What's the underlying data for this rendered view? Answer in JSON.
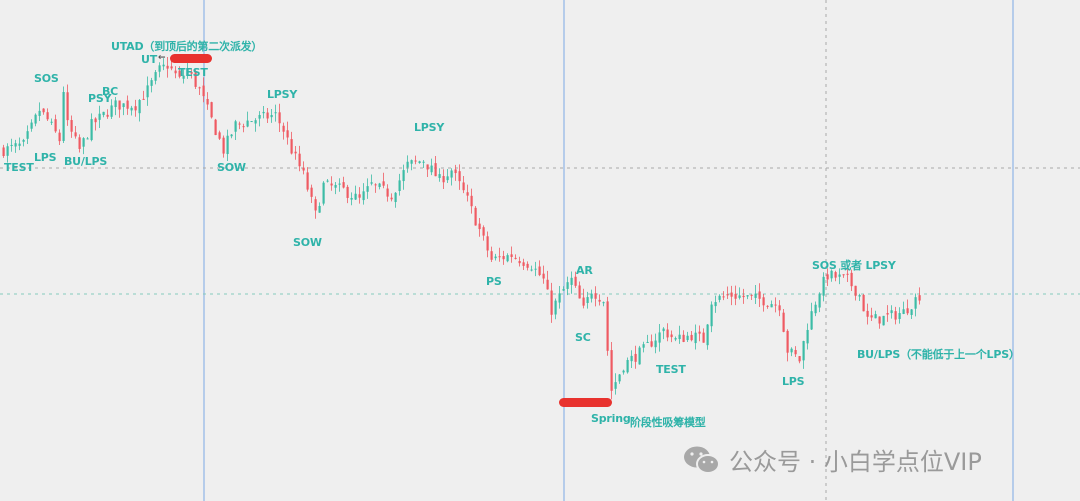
{
  "chart_data": {
    "type": "candlestick",
    "title": "",
    "xlabel": "",
    "ylabel": "",
    "grid": false,
    "colors": {
      "up": "#3cbca6",
      "down": "#ef5a62",
      "label": "#2fb3a9",
      "vline": "#8fb4e6",
      "dashed": "#a8a8a8",
      "dashed_green": "#86cbbd",
      "marker": "#e8322e"
    },
    "price_path": [
      [
        0,
        27
      ],
      [
        5,
        27.5
      ],
      [
        9,
        31
      ],
      [
        11,
        30
      ],
      [
        14,
        28
      ],
      [
        15,
        33
      ],
      [
        16,
        29.5
      ],
      [
        19,
        27
      ],
      [
        22,
        29.5
      ],
      [
        25,
        30.5
      ],
      [
        28,
        31.5
      ],
      [
        33,
        31.5
      ],
      [
        36,
        33
      ],
      [
        39,
        35
      ],
      [
        41,
        35.5
      ],
      [
        44,
        34
      ],
      [
        46,
        35
      ],
      [
        49,
        33
      ],
      [
        52,
        30
      ],
      [
        55,
        27
      ],
      [
        58,
        29.5
      ],
      [
        62,
        30
      ],
      [
        68,
        30.5
      ],
      [
        70,
        29
      ],
      [
        72,
        27
      ],
      [
        75,
        24.5
      ],
      [
        78,
        20.5
      ],
      [
        80,
        23.5
      ],
      [
        85,
        23
      ],
      [
        89,
        22
      ],
      [
        92,
        23.5
      ],
      [
        97,
        22.5
      ],
      [
        101,
        25.5
      ],
      [
        105,
        26
      ],
      [
        109,
        24
      ],
      [
        112,
        25
      ],
      [
        116,
        22
      ],
      [
        120,
        18
      ],
      [
        122,
        16
      ],
      [
        127,
        16.5
      ],
      [
        132,
        15.5
      ],
      [
        135,
        14
      ],
      [
        137,
        11
      ],
      [
        140,
        13
      ],
      [
        142,
        14
      ],
      [
        145,
        11
      ],
      [
        147,
        13
      ],
      [
        150,
        12
      ],
      [
        151,
        7
      ],
      [
        152,
        3
      ],
      [
        155,
        5.5
      ],
      [
        160,
        7
      ],
      [
        165,
        9
      ],
      [
        168,
        8
      ],
      [
        172,
        8.5
      ],
      [
        175,
        8
      ],
      [
        177,
        12
      ],
      [
        182,
        12.5
      ],
      [
        190,
        12
      ],
      [
        194,
        11.5
      ],
      [
        196,
        7
      ],
      [
        199,
        6
      ],
      [
        201,
        9.5
      ],
      [
        204,
        13
      ],
      [
        206,
        14.5
      ],
      [
        211,
        14
      ],
      [
        214,
        12.5
      ],
      [
        216,
        10
      ],
      [
        220,
        10.2
      ],
      [
        225,
        10.8
      ],
      [
        229,
        12.5
      ]
    ],
    "annotations": [
      {
        "text": "TEST"
      },
      {
        "text": "LPS"
      },
      {
        "text": "SOS"
      },
      {
        "text": "BU/LPS"
      },
      {
        "text": "PSY"
      },
      {
        "text": "BC"
      },
      {
        "text": "UT"
      },
      {
        "text": "←"
      },
      {
        "text": "TEST"
      },
      {
        "text": "UTAD（到顶后的第二次派发）"
      },
      {
        "text": "SOW"
      },
      {
        "text": "LPSY"
      },
      {
        "text": "LPSY"
      },
      {
        "text": "SOW"
      },
      {
        "text": "PS"
      },
      {
        "text": "AR"
      },
      {
        "text": "SC"
      },
      {
        "text": "Spring"
      },
      {
        "text": "阶段性吸筹模型"
      },
      {
        "text": "TEST"
      },
      {
        "text": "LPS"
      },
      {
        "text": "SOS 或者 LPSY"
      },
      {
        "text": "BU/LPS（不能低于上一个LPS）"
      }
    ]
  },
  "watermark": {
    "text": "公众号 · 小白学点位VIP",
    "icon": "wechat-icon"
  }
}
